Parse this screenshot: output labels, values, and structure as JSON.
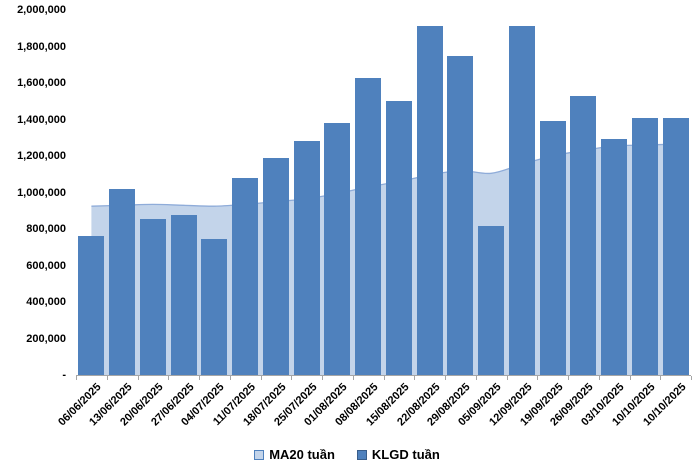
{
  "chart_data": {
    "type": "bar",
    "subtype": "bar_with_area_overlay",
    "title": "",
    "categories": [
      "06/06/2025",
      "13/06/2025",
      "20/06/2025",
      "27/06/2025",
      "04/07/2025",
      "11/07/2025",
      "18/07/2025",
      "25/07/2025",
      "01/08/2025",
      "08/08/2025",
      "15/08/2025",
      "22/08/2025",
      "29/08/2025",
      "05/09/2025",
      "12/09/2025",
      "19/09/2025",
      "26/09/2025",
      "03/10/2025",
      "10/10/2025",
      "10/10/2025"
    ],
    "series": [
      {
        "name": "MA20 tuần",
        "chart_type": "area",
        "color": "#C3D4EA",
        "line_color": "#8FACD9",
        "values": [
          925000,
          930000,
          935000,
          930000,
          925000,
          935000,
          950000,
          965000,
          995000,
          1030000,
          1060000,
          1095000,
          1120000,
          1105000,
          1155000,
          1200000,
          1230000,
          1255000,
          1260000,
          1265000
        ]
      },
      {
        "name": "KLGD tuần",
        "chart_type": "bar",
        "color": "#4F81BD",
        "values": [
          760000,
          1020000,
          855000,
          875000,
          745000,
          1080000,
          1190000,
          1280000,
          1380000,
          1630000,
          1500000,
          1910000,
          1750000,
          815000,
          1910000,
          1390000,
          1530000,
          1295000,
          1410000,
          1410000
        ]
      }
    ],
    "ylim": [
      0,
      2000000
    ],
    "ytick_step": 200000,
    "y_tick_labels": [
      "2,000,000",
      "1,800,000",
      "1,600,000",
      "1,400,000",
      "1,200,000",
      "1,000,000",
      "800,000",
      "600,000",
      "400,000",
      "200,000",
      "-"
    ],
    "grid": false,
    "legend_position": "bottom",
    "axis_color": "#A6A6A6",
    "text_color": "#000000"
  }
}
